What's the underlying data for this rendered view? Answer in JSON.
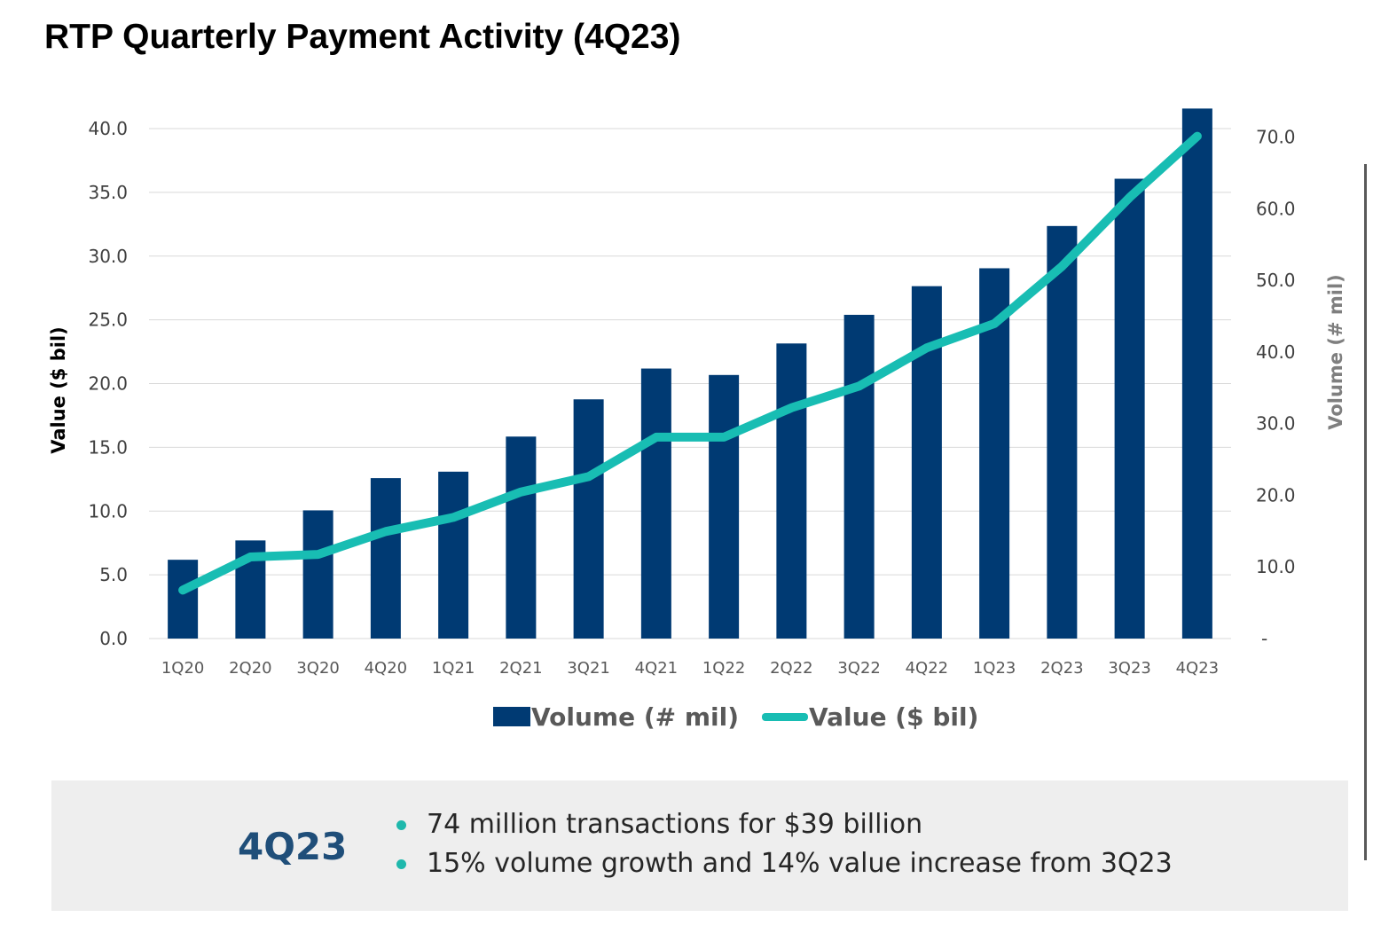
{
  "page": {
    "title": "RTP Quarterly Payment Activity (4Q23)"
  },
  "colors": {
    "volume_bar": "#003a73",
    "value_line": "#18bdb3",
    "grid": "#d9d9d9",
    "summary_bg": "#eeeeee",
    "summary_label": "#1f4e79"
  },
  "chart_data": {
    "type": "bar",
    "title": "RTP Quarterly Payment Activity (4Q23)",
    "categories": [
      "1Q20",
      "2Q20",
      "3Q20",
      "4Q20",
      "1Q21",
      "2Q21",
      "3Q21",
      "4Q21",
      "1Q22",
      "2Q22",
      "3Q22",
      "4Q22",
      "1Q23",
      "2Q23",
      "3Q23",
      "4Q23"
    ],
    "series": [
      {
        "name": "Volume (# mil)",
        "type": "bar",
        "axis": "right",
        "values": [
          11.0,
          13.7,
          17.9,
          22.4,
          23.3,
          28.2,
          33.4,
          37.7,
          36.8,
          41.2,
          45.2,
          49.2,
          51.7,
          57.6,
          64.2,
          74.0
        ]
      },
      {
        "name": "Value ($ bil)",
        "type": "line",
        "axis": "left",
        "values": [
          3.8,
          6.4,
          6.6,
          8.4,
          9.5,
          11.5,
          12.7,
          15.8,
          15.8,
          18.1,
          19.8,
          22.8,
          24.7,
          29.2,
          34.6,
          39.4
        ]
      }
    ],
    "y_left": {
      "label": "Value ($ bil)",
      "ylim": [
        0,
        40
      ],
      "ticks": [
        0,
        5,
        10,
        15,
        20,
        25,
        30,
        35,
        40
      ],
      "tick_labels": [
        "0.0",
        "5.0",
        "10.0",
        "15.0",
        "20.0",
        "25.0",
        "30.0",
        "35.0",
        "40.0"
      ]
    },
    "y_right": {
      "label": "Volume (# mil)",
      "ylim": [
        0,
        71.2
      ],
      "ticks": [
        0,
        10,
        20,
        30,
        40,
        50,
        60,
        70
      ],
      "tick_labels": [
        "-",
        "10.0",
        "20.0",
        "30.0",
        "40.0",
        "50.0",
        "60.0",
        "70.0"
      ]
    },
    "grid": true,
    "legend": {
      "placement": "bottom",
      "items": [
        "Volume (# mil)",
        "Value ($ bil)"
      ]
    }
  },
  "summary": {
    "label": "4Q23",
    "bullets": [
      "74 million transactions for $39 billion",
      "15% volume growth and 14% value increase from 3Q23"
    ]
  }
}
